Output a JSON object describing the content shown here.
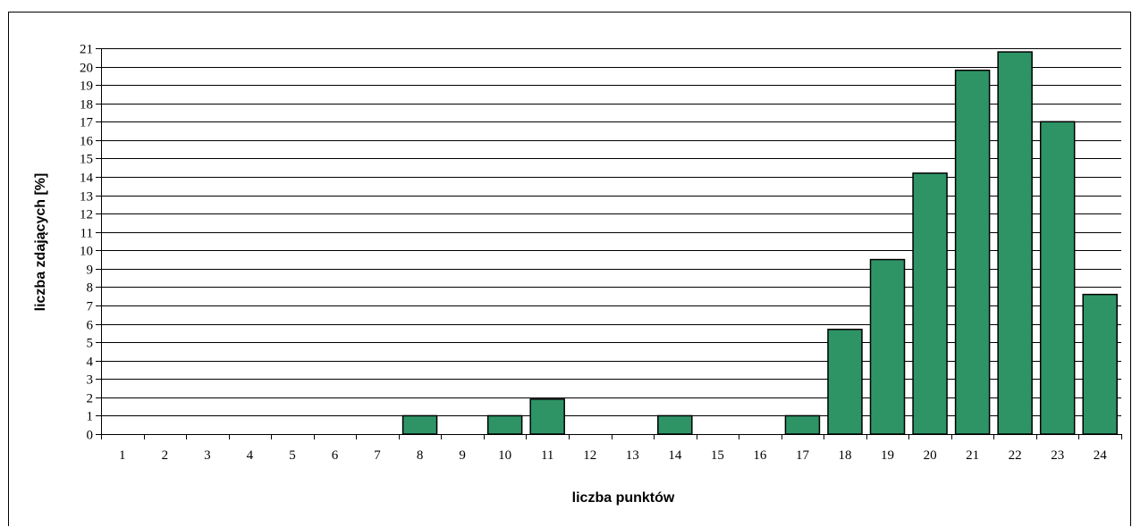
{
  "chart_data": {
    "type": "bar",
    "title": "",
    "xlabel": "liczba punktów",
    "ylabel": "liczba zdających [%]",
    "ylim": [
      0,
      21
    ],
    "yticks": [
      0,
      1,
      2,
      3,
      4,
      5,
      6,
      7,
      8,
      9,
      10,
      11,
      12,
      13,
      14,
      15,
      16,
      17,
      18,
      19,
      20,
      21
    ],
    "grid": true,
    "legend": "none",
    "bar_color": "#2e9466",
    "categories": [
      "1",
      "2",
      "3",
      "4",
      "5",
      "6",
      "7",
      "8",
      "9",
      "10",
      "11",
      "12",
      "13",
      "14",
      "15",
      "16",
      "17",
      "18",
      "19",
      "20",
      "21",
      "22",
      "23",
      "24"
    ],
    "values": [
      0,
      0,
      0,
      0,
      0,
      0,
      0,
      1,
      0,
      1,
      1.9,
      0,
      0,
      1,
      0,
      0,
      1,
      5.7,
      9.5,
      14.2,
      19.8,
      20.8,
      17.0,
      7.6
    ]
  }
}
